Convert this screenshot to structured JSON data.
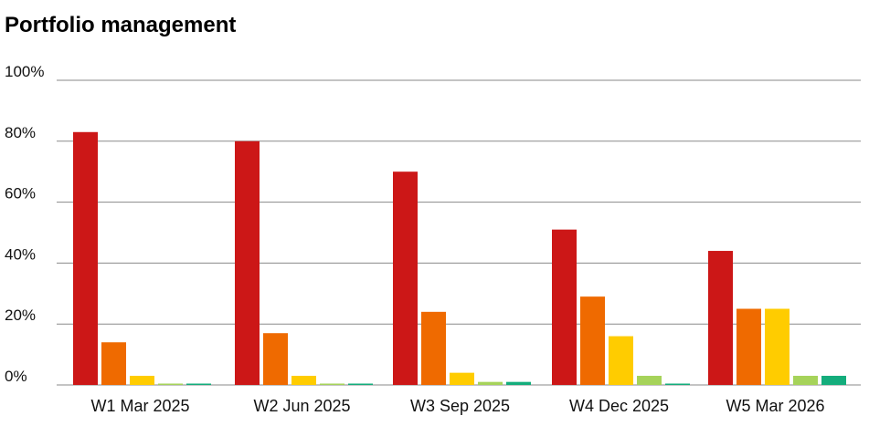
{
  "title": "Portfolio management",
  "chart_data": {
    "type": "bar",
    "title": "Portfolio management",
    "xlabel": "",
    "ylabel": "",
    "ylim": [
      0,
      100
    ],
    "yticks": [
      "0%",
      "20%",
      "40%",
      "60%",
      "80%",
      "100%"
    ],
    "ytick_values": [
      0,
      20,
      40,
      60,
      80,
      100
    ],
    "grid": true,
    "legend": "none",
    "categories": [
      "W1 Mar 2025",
      "W2 Jun 2025",
      "W3 Sep 2025",
      "W4 Dec 2025",
      "W5 Mar 2026"
    ],
    "series": [
      {
        "color": "#cc1717",
        "values": [
          83,
          80,
          70,
          51,
          44
        ]
      },
      {
        "color": "#ef6a00",
        "values": [
          14,
          17,
          24,
          29,
          25
        ]
      },
      {
        "color": "#ffcc00",
        "values": [
          3,
          3,
          4,
          16,
          25
        ]
      },
      {
        "color": "#a6d35a",
        "values": [
          0.3,
          0.3,
          1,
          3,
          3
        ]
      },
      {
        "color": "#14ad7c",
        "values": [
          0.3,
          0.3,
          1,
          0.3,
          3
        ]
      }
    ]
  }
}
